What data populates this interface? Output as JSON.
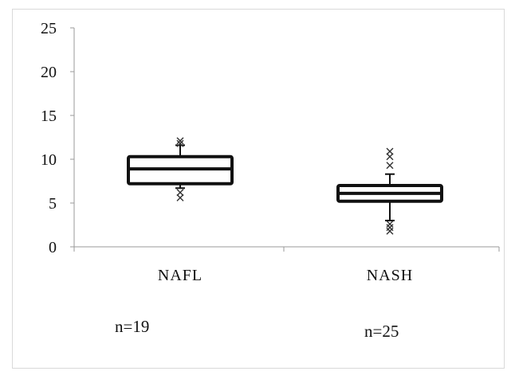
{
  "chart_data": {
    "type": "box",
    "title": "",
    "xlabel": "",
    "ylabel": "",
    "ylim": [
      0,
      25
    ],
    "yticks": [
      "0",
      "5",
      "10",
      "15",
      "20",
      "25"
    ],
    "ytick_values": [
      0,
      5,
      10,
      15,
      20,
      25
    ],
    "grid": false,
    "categories": [
      "NAFL",
      "NASH"
    ],
    "series": [
      {
        "category": "NAFL",
        "min": 6.7,
        "q1": 7.2,
        "median": 8.9,
        "q3": 10.3,
        "max": 11.6,
        "outliers": [
          5.6,
          6.2,
          11.8,
          12.1
        ]
      },
      {
        "category": "NASH",
        "min": 3.0,
        "q1": 5.2,
        "median": 6.1,
        "q3": 7.0,
        "max": 8.3,
        "outliers": [
          1.8,
          2.2,
          2.6,
          9.3,
          10.3,
          10.9
        ]
      }
    ],
    "annotations": [
      "n=19",
      "n=25"
    ]
  },
  "colors": {
    "ink": "#111111",
    "axis": "#9a9a9a",
    "frame": "#d9d9d9"
  }
}
